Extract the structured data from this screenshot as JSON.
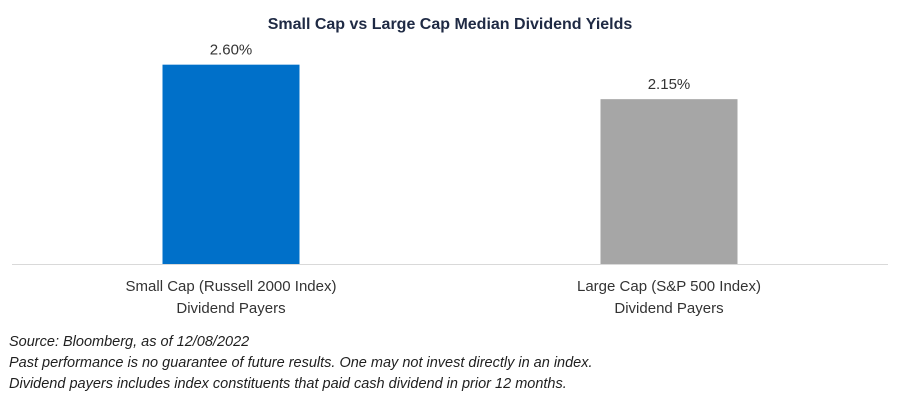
{
  "chart_data": {
    "type": "bar",
    "title": "Small Cap vs Large Cap Median Dividend Yields",
    "categories": [
      [
        "Small Cap (Russell 2000 Index)",
        "Dividend Payers"
      ],
      [
        "Large Cap (S&P 500 Index)",
        "Dividend Payers"
      ]
    ],
    "values": [
      2.6,
      2.15
    ],
    "data_labels": [
      "2.60%",
      "2.15%"
    ],
    "colors": [
      "#0070c9",
      "#a6a6a6"
    ],
    "ylim": [
      0,
      3.0
    ],
    "grid": false,
    "xlabel": "",
    "ylabel": ""
  },
  "footnotes": {
    "source": "Source: Bloomberg, as of 12/08/2022",
    "disclaimer": "Past performance is no guarantee of future results. One may not invest directly in an index.",
    "definition": "Dividend payers includes index constituents that paid cash dividend in prior 12 months."
  },
  "axis_color": "#d9d9d9"
}
